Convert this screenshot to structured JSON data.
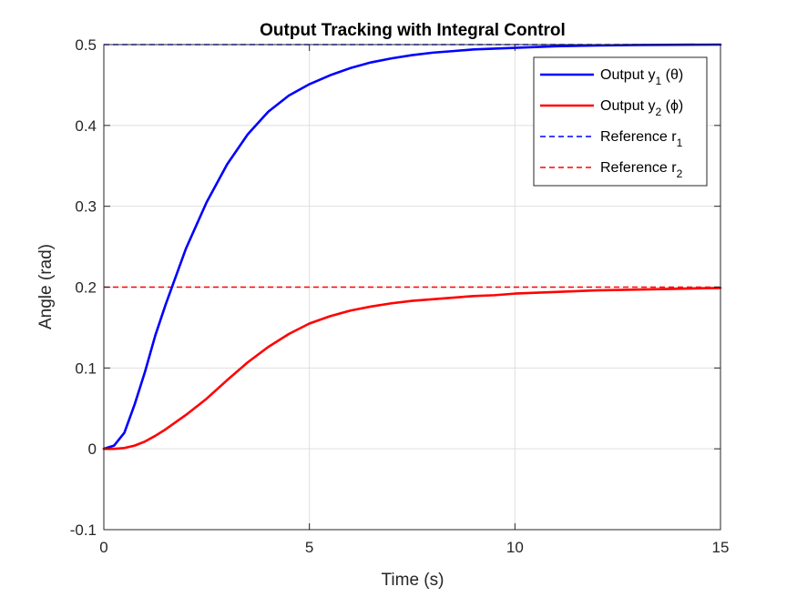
{
  "chart_data": {
    "type": "line",
    "title": "Output Tracking with Integral Control",
    "xlabel": "Time (s)",
    "ylabel": "Angle (rad)",
    "xlim": [
      0,
      15
    ],
    "ylim": [
      -0.1,
      0.5
    ],
    "xticks": [
      0,
      5,
      10,
      15
    ],
    "xtick_labels": [
      "0",
      "5",
      "10",
      "15"
    ],
    "yticks": [
      -0.1,
      0,
      0.1,
      0.2,
      0.3,
      0.4,
      0.5
    ],
    "ytick_labels": [
      "-0.1",
      "0",
      "0.1",
      "0.2",
      "0.3",
      "0.4",
      "0.5"
    ],
    "grid": true,
    "legend_position": "top-right",
    "series": [
      {
        "name": "Output y1 (θ)",
        "label_main": "Output y",
        "label_sub": "1",
        "label_tail": " (θ)",
        "color": "#0000ff",
        "style": "solid",
        "x": [
          0,
          0.25,
          0.5,
          0.75,
          1,
          1.25,
          1.5,
          1.75,
          2,
          2.5,
          3,
          3.5,
          4,
          4.5,
          5,
          5.5,
          6,
          6.5,
          7,
          7.5,
          8,
          8.5,
          9,
          9.5,
          10,
          11,
          12,
          13,
          14,
          15
        ],
        "y": [
          0,
          0.004,
          0.02,
          0.055,
          0.095,
          0.14,
          0.178,
          0.213,
          0.248,
          0.305,
          0.352,
          0.389,
          0.417,
          0.437,
          0.451,
          0.462,
          0.471,
          0.478,
          0.483,
          0.487,
          0.49,
          0.492,
          0.494,
          0.495,
          0.496,
          0.498,
          0.499,
          0.4995,
          0.4998,
          0.5
        ]
      },
      {
        "name": "Output y2 (ϕ)",
        "label_main": "Output y",
        "label_sub": "2",
        "label_tail": " (ϕ)",
        "color": "#ff0000",
        "style": "solid",
        "x": [
          0,
          0.25,
          0.5,
          0.75,
          1,
          1.25,
          1.5,
          1.75,
          2,
          2.5,
          3,
          3.5,
          4,
          4.5,
          5,
          5.5,
          6,
          6.5,
          7,
          7.5,
          8,
          8.5,
          9,
          9.5,
          10,
          11,
          12,
          13,
          14,
          15
        ],
        "y": [
          0,
          0,
          0.001,
          0.004,
          0.009,
          0.016,
          0.024,
          0.033,
          0.042,
          0.062,
          0.085,
          0.107,
          0.126,
          0.142,
          0.155,
          0.164,
          0.171,
          0.176,
          0.18,
          0.183,
          0.185,
          0.187,
          0.189,
          0.19,
          0.192,
          0.194,
          0.196,
          0.197,
          0.198,
          0.199
        ]
      },
      {
        "name": "Reference r1",
        "label_main": "Reference r",
        "label_sub": "1",
        "label_tail": "",
        "color": "#0000ff",
        "style": "dashed",
        "x": [
          0,
          15
        ],
        "y": [
          0.5,
          0.5
        ]
      },
      {
        "name": "Reference r2",
        "label_main": "Reference r",
        "label_sub": "2",
        "label_tail": "",
        "color": "#ff0000",
        "style": "dashed",
        "x": [
          0,
          15
        ],
        "y": [
          0.2,
          0.2
        ]
      }
    ]
  }
}
